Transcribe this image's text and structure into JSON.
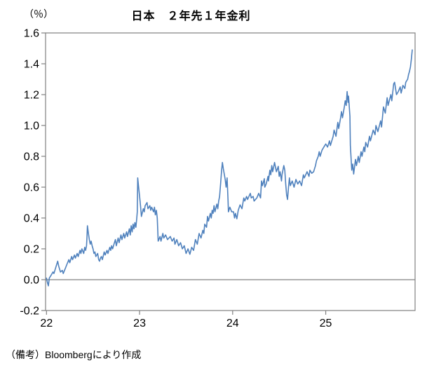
{
  "footnote": "（備考）Bloombergにより作成",
  "chart_data": {
    "type": "line",
    "title": "日本　２年先１年金利",
    "unit_label": "（％）",
    "xlabel": "",
    "ylabel": "%",
    "legend": "none",
    "grid": "off",
    "ylim": [
      -0.2,
      1.6
    ],
    "yticks": [
      1.6,
      1.4,
      1.2,
      1.0,
      0.8,
      0.6,
      0.4,
      0.2,
      0.0,
      -0.2
    ],
    "ytick_labels": [
      "1.6",
      "1.4",
      "1.2",
      "1.0",
      "0.8",
      "0.6",
      "0.4",
      "0.2",
      "0.0",
      "-0.2"
    ],
    "xlim": [
      21.99,
      25.96
    ],
    "xticks": [
      22,
      23,
      24,
      25
    ],
    "xtick_labels": [
      "22",
      "23",
      "24",
      "25"
    ],
    "zero_line": 0.0,
    "line_color": "#4F81BD",
    "frame_color": "#808080",
    "text_color": "#000000",
    "series": [
      {
        "name": "日本 2年先1年金利",
        "points": [
          [
            22.0,
            0.01
          ],
          [
            22.01,
            -0.02
          ],
          [
            22.02,
            -0.04
          ],
          [
            22.03,
            0.01
          ],
          [
            22.05,
            0.03
          ],
          [
            22.07,
            0.05
          ],
          [
            22.08,
            0.04
          ],
          [
            22.1,
            0.08
          ],
          [
            22.12,
            0.12
          ],
          [
            22.13,
            0.09
          ],
          [
            22.15,
            0.05
          ],
          [
            22.17,
            0.06
          ],
          [
            22.18,
            0.04
          ],
          [
            22.2,
            0.07
          ],
          [
            22.22,
            0.1
          ],
          [
            22.24,
            0.13
          ],
          [
            22.25,
            0.11
          ],
          [
            22.27,
            0.15
          ],
          [
            22.28,
            0.13
          ],
          [
            22.3,
            0.16
          ],
          [
            22.31,
            0.14
          ],
          [
            22.33,
            0.17
          ],
          [
            22.34,
            0.15
          ],
          [
            22.36,
            0.19
          ],
          [
            22.37,
            0.17
          ],
          [
            22.38,
            0.2
          ],
          [
            22.4,
            0.17
          ],
          [
            22.41,
            0.21
          ],
          [
            22.42,
            0.19
          ],
          [
            22.43,
            0.22
          ],
          [
            22.435,
            0.28
          ],
          [
            22.44,
            0.35
          ],
          [
            22.45,
            0.3
          ],
          [
            22.46,
            0.26
          ],
          [
            22.47,
            0.23
          ],
          [
            22.48,
            0.25
          ],
          [
            22.49,
            0.22
          ],
          [
            22.5,
            0.2
          ],
          [
            22.51,
            0.17
          ],
          [
            22.52,
            0.18
          ],
          [
            22.53,
            0.15
          ],
          [
            22.55,
            0.17
          ],
          [
            22.56,
            0.13
          ],
          [
            22.57,
            0.12
          ],
          [
            22.58,
            0.14
          ],
          [
            22.59,
            0.15
          ],
          [
            22.6,
            0.13
          ],
          [
            22.62,
            0.18
          ],
          [
            22.63,
            0.16
          ],
          [
            22.65,
            0.19
          ],
          [
            22.66,
            0.17
          ],
          [
            22.68,
            0.21
          ],
          [
            22.69,
            0.19
          ],
          [
            22.7,
            0.22
          ],
          [
            22.71,
            0.2
          ],
          [
            22.73,
            0.24
          ],
          [
            22.74,
            0.26
          ],
          [
            22.75,
            0.22
          ],
          [
            22.77,
            0.27
          ],
          [
            22.78,
            0.24
          ],
          [
            22.8,
            0.29
          ],
          [
            22.81,
            0.26
          ],
          [
            22.83,
            0.3
          ],
          [
            22.84,
            0.27
          ],
          [
            22.86,
            0.31
          ],
          [
            22.87,
            0.28
          ],
          [
            22.89,
            0.33
          ],
          [
            22.9,
            0.29
          ],
          [
            22.91,
            0.35
          ],
          [
            22.92,
            0.31
          ],
          [
            22.93,
            0.36
          ],
          [
            22.94,
            0.33
          ],
          [
            22.95,
            0.37
          ],
          [
            22.96,
            0.34
          ],
          [
            22.97,
            0.4
          ],
          [
            22.975,
            0.44
          ],
          [
            22.98,
            0.66
          ],
          [
            22.99,
            0.6
          ],
          [
            23.0,
            0.54
          ],
          [
            23.01,
            0.48
          ],
          [
            23.02,
            0.41
          ],
          [
            23.04,
            0.46
          ],
          [
            23.05,
            0.44
          ],
          [
            23.06,
            0.48
          ],
          [
            23.08,
            0.5
          ],
          [
            23.09,
            0.46
          ],
          [
            23.11,
            0.48
          ],
          [
            23.12,
            0.45
          ],
          [
            23.13,
            0.47
          ],
          [
            23.15,
            0.44
          ],
          [
            23.16,
            0.47
          ],
          [
            23.17,
            0.42
          ],
          [
            23.18,
            0.45
          ],
          [
            23.19,
            0.4
          ],
          [
            23.2,
            0.25
          ],
          [
            23.22,
            0.28
          ],
          [
            23.23,
            0.25
          ],
          [
            23.25,
            0.3
          ],
          [
            23.26,
            0.27
          ],
          [
            23.28,
            0.29
          ],
          [
            23.3,
            0.26
          ],
          [
            23.33,
            0.28
          ],
          [
            23.35,
            0.25
          ],
          [
            23.37,
            0.27
          ],
          [
            23.38,
            0.23
          ],
          [
            23.4,
            0.26
          ],
          [
            23.42,
            0.22
          ],
          [
            23.44,
            0.24
          ],
          [
            23.46,
            0.2
          ],
          [
            23.48,
            0.22
          ],
          [
            23.5,
            0.17
          ],
          [
            23.52,
            0.2
          ],
          [
            23.54,
            0.165
          ],
          [
            23.56,
            0.21
          ],
          [
            23.58,
            0.19
          ],
          [
            23.6,
            0.26
          ],
          [
            23.62,
            0.23
          ],
          [
            23.64,
            0.3
          ],
          [
            23.66,
            0.27
          ],
          [
            23.68,
            0.32
          ],
          [
            23.69,
            0.3
          ],
          [
            23.7,
            0.36
          ],
          [
            23.72,
            0.34
          ],
          [
            23.73,
            0.41
          ],
          [
            23.74,
            0.38
          ],
          [
            23.76,
            0.43
          ],
          [
            23.77,
            0.4
          ],
          [
            23.78,
            0.45
          ],
          [
            23.79,
            0.43
          ],
          [
            23.8,
            0.48
          ],
          [
            23.81,
            0.44
          ],
          [
            23.83,
            0.49
          ],
          [
            23.84,
            0.46
          ],
          [
            23.85,
            0.51
          ],
          [
            23.86,
            0.54
          ],
          [
            23.87,
            0.62
          ],
          [
            23.88,
            0.7
          ],
          [
            23.89,
            0.76
          ],
          [
            23.9,
            0.72
          ],
          [
            23.92,
            0.65
          ],
          [
            23.93,
            0.6
          ],
          [
            23.94,
            0.66
          ],
          [
            23.95,
            0.52
          ],
          [
            23.955,
            0.44
          ],
          [
            23.97,
            0.47
          ],
          [
            23.99,
            0.44
          ],
          [
            24.01,
            0.44
          ],
          [
            24.02,
            0.4
          ],
          [
            24.03,
            0.43
          ],
          [
            24.045,
            0.395
          ],
          [
            24.06,
            0.45
          ],
          [
            24.08,
            0.485
          ],
          [
            24.1,
            0.46
          ],
          [
            24.12,
            0.53
          ],
          [
            24.13,
            0.51
          ],
          [
            24.15,
            0.54
          ],
          [
            24.16,
            0.52
          ],
          [
            24.19,
            0.56
          ],
          [
            24.2,
            0.53
          ],
          [
            24.22,
            0.54
          ],
          [
            24.23,
            0.51
          ],
          [
            24.26,
            0.53
          ],
          [
            24.28,
            0.56
          ],
          [
            24.3,
            0.53
          ],
          [
            24.31,
            0.64
          ],
          [
            24.32,
            0.61
          ],
          [
            24.34,
            0.655
          ],
          [
            24.345,
            0.6
          ],
          [
            24.36,
            0.62
          ],
          [
            24.38,
            0.67
          ],
          [
            24.385,
            0.64
          ],
          [
            24.4,
            0.71
          ],
          [
            24.41,
            0.68
          ],
          [
            24.42,
            0.74
          ],
          [
            24.43,
            0.7
          ],
          [
            24.45,
            0.76
          ],
          [
            24.46,
            0.73
          ],
          [
            24.47,
            0.7
          ],
          [
            24.49,
            0.735
          ],
          [
            24.5,
            0.67
          ],
          [
            24.51,
            0.7
          ],
          [
            24.525,
            0.64
          ],
          [
            24.53,
            0.68
          ],
          [
            24.55,
            0.74
          ],
          [
            24.56,
            0.71
          ],
          [
            24.57,
            0.62
          ],
          [
            24.58,
            0.55
          ],
          [
            24.59,
            0.52
          ],
          [
            24.6,
            0.6
          ],
          [
            24.61,
            0.66
          ],
          [
            24.62,
            0.61
          ],
          [
            24.64,
            0.64
          ],
          [
            24.66,
            0.6
          ],
          [
            24.68,
            0.65
          ],
          [
            24.7,
            0.62
          ],
          [
            24.72,
            0.64
          ],
          [
            24.74,
            0.61
          ],
          [
            24.76,
            0.68
          ],
          [
            24.77,
            0.66
          ],
          [
            24.8,
            0.7
          ],
          [
            24.82,
            0.67
          ],
          [
            24.83,
            0.71
          ],
          [
            24.85,
            0.69
          ],
          [
            24.87,
            0.7
          ],
          [
            24.89,
            0.74
          ],
          [
            24.9,
            0.77
          ],
          [
            24.92,
            0.8
          ],
          [
            24.93,
            0.83
          ],
          [
            24.94,
            0.8
          ],
          [
            24.96,
            0.84
          ],
          [
            24.98,
            0.86
          ],
          [
            25.0,
            0.88
          ],
          [
            25.02,
            0.86
          ],
          [
            25.04,
            0.9
          ],
          [
            25.05,
            0.87
          ],
          [
            25.08,
            0.93
          ],
          [
            25.09,
            0.97
          ],
          [
            25.11,
            0.93
          ],
          [
            25.13,
            1.02
          ],
          [
            25.14,
            0.98
          ],
          [
            25.16,
            1.05
          ],
          [
            25.17,
            1.09
          ],
          [
            25.18,
            1.05
          ],
          [
            25.2,
            1.12
          ],
          [
            25.21,
            1.16
          ],
          [
            25.22,
            1.13
          ],
          [
            25.23,
            1.22
          ],
          [
            25.24,
            1.15
          ],
          [
            25.245,
            1.19
          ],
          [
            25.26,
            1.06
          ],
          [
            25.265,
            0.87
          ],
          [
            25.28,
            0.71
          ],
          [
            25.29,
            0.75
          ],
          [
            25.3,
            0.685
          ],
          [
            25.32,
            0.78
          ],
          [
            25.33,
            0.74
          ],
          [
            25.35,
            0.8
          ],
          [
            25.36,
            0.76
          ],
          [
            25.38,
            0.83
          ],
          [
            25.39,
            0.8
          ],
          [
            25.41,
            0.86
          ],
          [
            25.42,
            0.83
          ],
          [
            25.43,
            0.89
          ],
          [
            25.45,
            0.86
          ],
          [
            25.47,
            0.93
          ],
          [
            25.48,
            0.9
          ],
          [
            25.51,
            0.97
          ],
          [
            25.53,
            0.94
          ],
          [
            25.54,
            1.0
          ],
          [
            25.56,
            0.96
          ],
          [
            25.59,
            1.03
          ],
          [
            25.6,
            0.99
          ],
          [
            25.62,
            1.12
          ],
          [
            25.64,
            1.08
          ],
          [
            25.66,
            1.18
          ],
          [
            25.67,
            1.13
          ],
          [
            25.7,
            1.2
          ],
          [
            25.71,
            1.16
          ],
          [
            25.73,
            1.27
          ],
          [
            25.74,
            1.28
          ],
          [
            25.76,
            1.2
          ],
          [
            25.78,
            1.22
          ],
          [
            25.8,
            1.25
          ],
          [
            25.81,
            1.21
          ],
          [
            25.83,
            1.26
          ],
          [
            25.85,
            1.24
          ],
          [
            25.86,
            1.28
          ],
          [
            25.88,
            1.3
          ],
          [
            25.89,
            1.33
          ],
          [
            25.9,
            1.35
          ],
          [
            25.91,
            1.38
          ],
          [
            25.92,
            1.43
          ],
          [
            25.93,
            1.49
          ]
        ]
      }
    ]
  }
}
